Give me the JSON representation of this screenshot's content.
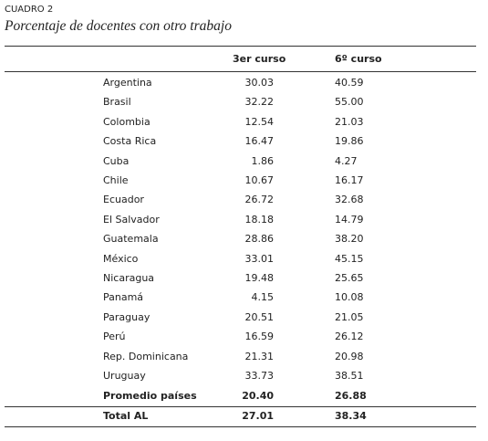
{
  "header": {
    "label": "CUADRO 2",
    "title": "Porcentaje de docentes con otro trabajo"
  },
  "table": {
    "columns": [
      "3er curso",
      "6º curso"
    ],
    "rows": [
      [
        "Argentina",
        "30.03",
        "40.59"
      ],
      [
        "Brasil",
        "32.22",
        "55.00"
      ],
      [
        "Colombia",
        "12.54",
        "21.03"
      ],
      [
        "Costa Rica",
        "16.47",
        "19.86"
      ],
      [
        "Cuba",
        "1.86",
        "4.27"
      ],
      [
        "Chile",
        "10.67",
        "16.17"
      ],
      [
        "Ecuador",
        "26.72",
        "32.68"
      ],
      [
        "El Salvador",
        "18.18",
        "14.79"
      ],
      [
        "Guatemala",
        "28.86",
        "38.20"
      ],
      [
        "México",
        "33.01",
        "45.15"
      ],
      [
        "Nicaragua",
        "19.48",
        "25.65"
      ],
      [
        "Panamá",
        "4.15",
        "10.08"
      ],
      [
        "Paraguay",
        "20.51",
        "21.05"
      ],
      [
        "Perú",
        "16.59",
        "26.12"
      ],
      [
        "Rep. Dominicana",
        "21.31",
        "20.98"
      ],
      [
        "Uruguay",
        "33.73",
        "38.51"
      ]
    ],
    "summary_rows": [
      [
        "Promedio países",
        "20.40",
        "26.88"
      ],
      [
        "Total AL",
        "27.01",
        "38.34"
      ]
    ]
  }
}
